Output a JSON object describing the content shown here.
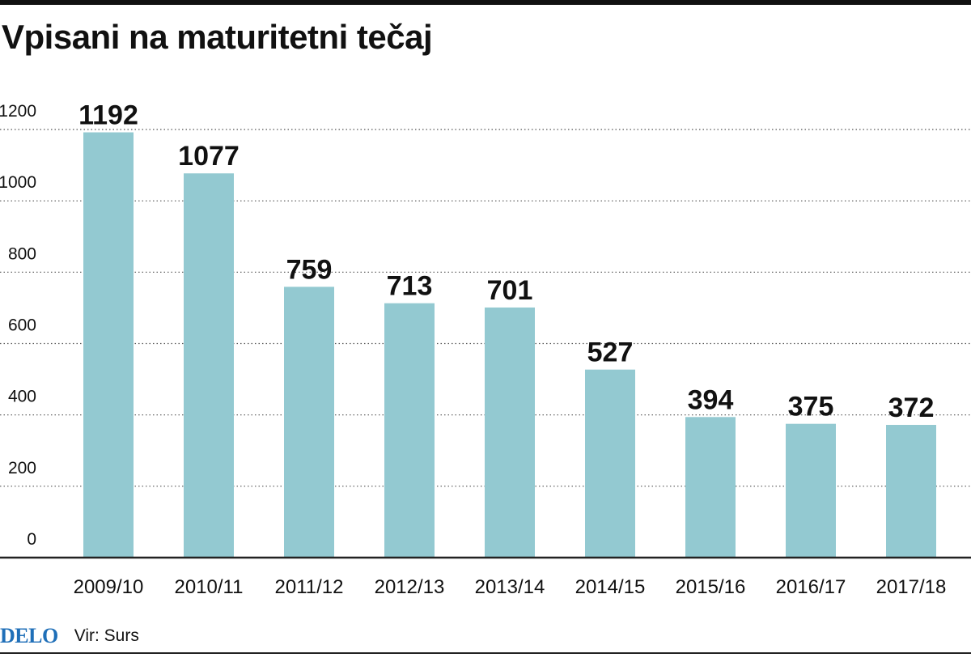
{
  "title": "Vpisani na maturitetni tečaj",
  "footer": {
    "logo": "DELO",
    "source": "Vir: Surs"
  },
  "colors": {
    "bar": "#93c9d1",
    "text": "#111111",
    "grid": "#555555",
    "logo": "#1f6fb8"
  },
  "chart_data": {
    "type": "bar",
    "categories": [
      "2009/10",
      "2010/11",
      "2011/12",
      "2012/13",
      "2013/14",
      "2014/15",
      "2015/16",
      "2016/17",
      "2017/18"
    ],
    "values": [
      1192,
      1077,
      759,
      713,
      701,
      527,
      394,
      375,
      372
    ],
    "data_labels": [
      "1192",
      "1077",
      "759",
      "713",
      "701",
      "527",
      "394",
      "375",
      "372"
    ],
    "y_ticks": [
      0,
      200,
      400,
      600,
      800,
      1000,
      1200
    ],
    "ylim": [
      0,
      1200
    ],
    "grid": true,
    "grid_style": "dotted",
    "legend": "none"
  }
}
